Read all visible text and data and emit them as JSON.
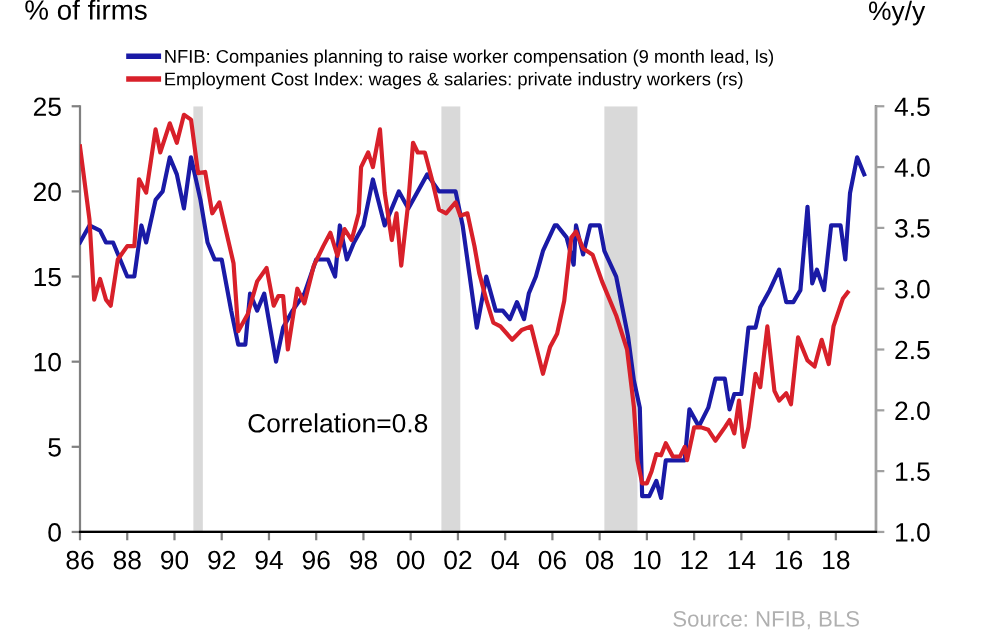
{
  "chart_data": {
    "type": "line",
    "ylabel": "% of firms",
    "y2label": "%y/y",
    "xlim": [
      1986,
      2019.7
    ],
    "xticks": [
      {
        "value": 1986,
        "label": "86"
      },
      {
        "value": 1988,
        "label": "88"
      },
      {
        "value": 1990,
        "label": "90"
      },
      {
        "value": 1992,
        "label": "92"
      },
      {
        "value": 1994,
        "label": "94"
      },
      {
        "value": 1996,
        "label": "96"
      },
      {
        "value": 1998,
        "label": "98"
      },
      {
        "value": 2000,
        "label": "00"
      },
      {
        "value": 2002,
        "label": "02"
      },
      {
        "value": 2004,
        "label": "04"
      },
      {
        "value": 2006,
        "label": "06"
      },
      {
        "value": 2008,
        "label": "08"
      },
      {
        "value": 2010,
        "label": "10"
      },
      {
        "value": 2012,
        "label": "12"
      },
      {
        "value": 2014,
        "label": "14"
      },
      {
        "value": 2016,
        "label": "16"
      },
      {
        "value": 2018,
        "label": "18"
      }
    ],
    "ylim": [
      0,
      25
    ],
    "yticks": [
      0,
      5,
      10,
      15,
      20,
      25
    ],
    "y2lim": [
      1.0,
      4.5
    ],
    "y2ticks": [
      {
        "value": 1.0,
        "label": "1.0"
      },
      {
        "value": 1.5,
        "label": "1.5"
      },
      {
        "value": 2.0,
        "label": "2.0"
      },
      {
        "value": 2.5,
        "label": "2.5"
      },
      {
        "value": 3.0,
        "label": "3.0"
      },
      {
        "value": 3.5,
        "label": "3.5"
      },
      {
        "value": 4.0,
        "label": "4.0"
      },
      {
        "value": 4.5,
        "label": "4.5"
      }
    ],
    "grid": false,
    "legend": "top left",
    "marker": "none",
    "line_style": "solid",
    "bands": [
      {
        "axis": "x",
        "from": 1990.8,
        "to": 1991.2,
        "color": "#d9d9d9"
      },
      {
        "axis": "x",
        "from": 2001.3,
        "to": 2002.1,
        "color": "#d9d9d9"
      },
      {
        "axis": "x",
        "from": 2008.2,
        "to": 2009.6,
        "color": "#d9d9d9"
      }
    ],
    "annotations": [
      "Correlation=0.8",
      "Source: NFIB, BLS"
    ],
    "series": [
      {
        "name": "NFIB: Companies planning to raise worker compensation (9 month lead, ls)",
        "color": "#1a1aa6",
        "x": [
          1986.0,
          1986.4,
          1986.85,
          1987.1,
          1987.4,
          1987.7,
          1988.0,
          1988.3,
          1988.6,
          1988.8,
          1989.2,
          1989.5,
          1989.8,
          1990.1,
          1990.4,
          1990.7,
          1991.1,
          1991.4,
          1991.7,
          1992.0,
          1992.4,
          1992.7,
          1993.0,
          1993.2,
          1993.5,
          1993.8,
          1994.3,
          1994.6,
          1995.0,
          1995.5,
          1996.0,
          1996.5,
          1996.8,
          1997.0,
          1997.3,
          1997.6,
          1998.0,
          1998.4,
          1998.9,
          1999.5,
          1999.9,
          2000.7,
          2001.2,
          2001.9,
          2002.2,
          2002.8,
          2003.2,
          2003.6,
          2003.9,
          2004.2,
          2004.5,
          2004.8,
          2005.0,
          2005.3,
          2005.6,
          2006.1,
          2006.2,
          2006.6,
          2006.9,
          2007.0,
          2007.3,
          2007.6,
          2008.0,
          2008.2,
          2008.7,
          2009.2,
          2009.45,
          2009.7,
          2009.8,
          2010.1,
          2010.4,
          2010.6,
          2010.8,
          2011.6,
          2011.8,
          2012.2,
          2012.6,
          2012.9,
          2013.3,
          2013.5,
          2013.7,
          2014.0,
          2014.3,
          2014.6,
          2014.8,
          2015.2,
          2015.6,
          2015.9,
          2016.2,
          2016.5,
          2016.8,
          2017.0,
          2017.2,
          2017.5,
          2017.8,
          2018.2,
          2018.4,
          2018.6,
          2018.9,
          2019.2
        ],
        "values": [
          17,
          18,
          17.7,
          17,
          17,
          16,
          15,
          15,
          18,
          17,
          19.5,
          20,
          22,
          21,
          19,
          22,
          19.5,
          17,
          16,
          16,
          13,
          11,
          11,
          14,
          13,
          14,
          10,
          12,
          13,
          14,
          16,
          16,
          15,
          18,
          16,
          17,
          18,
          20.7,
          18,
          20,
          19,
          21,
          20,
          20,
          18,
          12,
          15,
          13,
          13,
          12.5,
          13.5,
          12.5,
          14,
          15,
          16.5,
          18,
          18,
          17.3,
          15.7,
          18,
          16.3,
          18,
          18,
          16.5,
          15,
          11.5,
          8.9,
          7.3,
          2.1,
          2.1,
          3.0,
          2.0,
          4.2,
          4.2,
          7.2,
          6.2,
          7.3,
          9.0,
          9.0,
          7.2,
          8.1,
          8.1,
          12.0,
          12.0,
          13.2,
          14.2,
          15.4,
          13.5,
          13.5,
          14.2,
          19.1,
          14.6,
          15.4,
          14.2,
          18,
          18,
          16,
          19.9,
          22,
          21
        ]
      },
      {
        "name": "Employment Cost Index: wages & salaries: private industry workers (rs)",
        "color": "#d8202a",
        "axis": "y2",
        "x": [
          1986.0,
          1986.4,
          1986.6,
          1986.85,
          1987.1,
          1987.3,
          1987.6,
          1988.0,
          1988.3,
          1988.5,
          1988.8,
          1989.2,
          1989.4,
          1989.8,
          1990.1,
          1990.4,
          1990.7,
          1991.0,
          1991.3,
          1991.6,
          1991.9,
          1992.2,
          1992.5,
          1992.7,
          1993.1,
          1993.5,
          1993.9,
          1994.2,
          1994.4,
          1994.6,
          1994.8,
          1995.2,
          1995.5,
          1995.9,
          1996.3,
          1996.6,
          1996.9,
          1997.2,
          1997.5,
          1997.8,
          1997.9,
          1998.2,
          1998.4,
          1998.7,
          1998.9,
          1999.2,
          1999.4,
          1999.6,
          1999.9,
          2000.1,
          2000.3,
          2000.6,
          2000.9,
          2001.2,
          2001.5,
          2001.9,
          2002.1,
          2002.4,
          2002.7,
          2002.9,
          2003.2,
          2003.5,
          2003.8,
          2004.3,
          2004.7,
          2005.1,
          2005.6,
          2005.9,
          2006.2,
          2006.5,
          2006.8,
          2007.0,
          2007.3,
          2007.7,
          2008.1,
          2008.7,
          2009.16,
          2009.45,
          2009.6,
          2009.8,
          2010.0,
          2010.2,
          2010.4,
          2010.6,
          2010.8,
          2011.1,
          2011.4,
          2011.6,
          2011.7,
          2012.0,
          2012.3,
          2012.6,
          2012.9,
          2013.3,
          2013.5,
          2013.7,
          2013.9,
          2014.1,
          2014.3,
          2014.6,
          2014.8,
          2015.1,
          2015.4,
          2015.6,
          2015.9,
          2016.1,
          2016.4,
          2016.8,
          2017.1,
          2017.4,
          2017.7,
          2017.9,
          2018.3,
          2018.5
        ],
        "values": [
          4.17,
          3.57,
          2.91,
          3.08,
          2.91,
          2.86,
          3.24,
          3.35,
          3.35,
          3.9,
          3.79,
          4.31,
          4.12,
          4.36,
          4.2,
          4.43,
          4.39,
          3.95,
          3.96,
          3.62,
          3.71,
          3.46,
          3.21,
          2.65,
          2.79,
          3.06,
          3.17,
          2.86,
          2.94,
          2.94,
          2.5,
          3.0,
          2.88,
          3.19,
          3.35,
          3.46,
          3.27,
          3.49,
          3.4,
          3.62,
          4.0,
          4.12,
          4.0,
          4.31,
          3.79,
          3.4,
          3.62,
          3.19,
          3.71,
          4.2,
          4.12,
          4.12,
          3.9,
          3.65,
          3.62,
          3.71,
          3.6,
          3.62,
          3.35,
          3.13,
          2.91,
          2.72,
          2.69,
          2.58,
          2.66,
          2.69,
          2.3,
          2.52,
          2.63,
          2.9,
          3.42,
          3.47,
          3.33,
          3.28,
          3.06,
          2.78,
          2.5,
          2.03,
          1.59,
          1.4,
          1.4,
          1.5,
          1.64,
          1.63,
          1.73,
          1.62,
          1.62,
          1.7,
          1.59,
          1.86,
          1.86,
          1.84,
          1.75,
          1.86,
          1.92,
          1.81,
          2.08,
          1.7,
          1.86,
          2.3,
          2.19,
          2.69,
          2.16,
          2.08,
          2.14,
          2.05,
          2.6,
          2.41,
          2.36,
          2.58,
          2.38,
          2.69,
          2.92,
          2.97
        ]
      }
    ]
  }
}
